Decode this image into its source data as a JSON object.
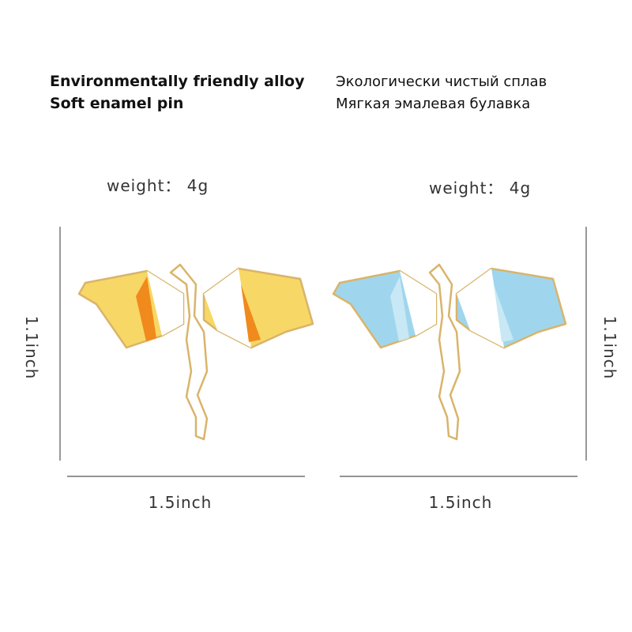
{
  "features_en": [
    "Environmentally friendly alloy",
    "Soft enamel pin"
  ],
  "features_ru": [
    "Экологически чистый сплав",
    "Мягкая эмалевая булавка"
  ],
  "products": [
    {
      "weight": "weight： 4g",
      "height": "1.1inch",
      "width": "1.5inch"
    },
    {
      "weight": "weight： 4g",
      "height": "1.1inch",
      "width": "1.5inch"
    }
  ]
}
